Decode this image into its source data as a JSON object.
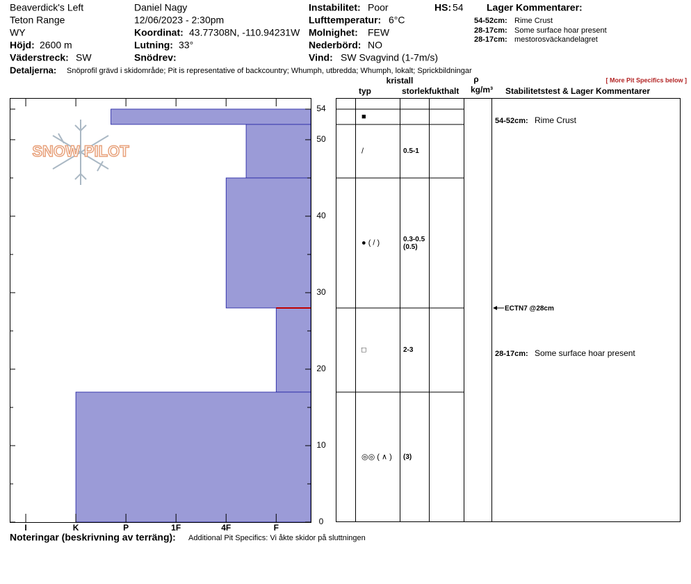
{
  "header": {
    "location": "Beaverdick's Left",
    "range": "Teton Range",
    "state": "WY",
    "elevation_label": "Höjd:",
    "elevation": "2600 m",
    "aspect_label": "Väderstreck:",
    "aspect": "SW",
    "observer": "Daniel Nagy",
    "datetime": "12/06/2023 - 2:30pm",
    "coordinates_label": "Koordinat:",
    "coordinates": "43.77308N, -110.94231W",
    "slope_label": "Lutning:",
    "slope": "33°",
    "wind_loading_label": "Snödrev:",
    "instability_label": "Instabilitet:",
    "instability": "Poor",
    "air_temp_label": "Lufttemperatur:",
    "air_temp": "6°C",
    "sky_label": "Molnighet:",
    "sky": "FEW",
    "precip_label": "Nederbörd:",
    "precip": "NO",
    "wind_label": "Vind:",
    "wind": "SW  Svagvind (1-7m/s)",
    "hs_label": "HS:",
    "hs": "54",
    "layer_comments_title": "Lager Kommentarer:",
    "layer_comments": [
      {
        "range": "54-52cm:",
        "text": "Rime Crust"
      },
      {
        "range": "28-17cm:",
        "text": "Some surface hoar present"
      },
      {
        "range": "28-17cm:",
        "text": "mestorosväckandelagret"
      }
    ],
    "details_label": "Detaljerna:",
    "details": "Snöprofil grävd i skidområde;  Pit is representative of backcountry;  Whumph, utbredda;  Whumph, lokalt;  Sprickbildningar"
  },
  "logo": "SNOW PILOT",
  "table": {
    "more_link": "[ More Pit Specifics below ]",
    "crystal_header": "kristall",
    "type_header": "typ",
    "size_header": "storlek",
    "moisture_header": "fukthalt",
    "density_symbol": "ρ",
    "density_unit": "kg/m³",
    "comments_header": "Stabilitetstest & Lager Kommentarer",
    "grain_types": [
      "■",
      "/",
      "● ( / )",
      "□",
      "◎◎ ( ∧ )"
    ],
    "grain_sizes": [
      null,
      "0.5-1",
      "0.3-0.5",
      "2-3",
      null
    ],
    "grain_sizes_secondary": [
      null,
      null,
      "(0.5)",
      null,
      "(3)"
    ],
    "comments": [
      {
        "range": "54-52cm:",
        "text": "Rime Crust"
      },
      {
        "range": "28-17cm:",
        "text": "Some surface hoar present"
      }
    ],
    "stability_test": "ECTN7 @28cm"
  },
  "chart_data": {
    "type": "snow-profile",
    "layers": {
      "top": [
        54,
        52,
        45,
        28,
        17
      ],
      "bottom": [
        52,
        45,
        28,
        17,
        0
      ],
      "hardness": [
        4.3,
        1.6,
        2,
        1,
        5
      ]
    },
    "color": "#9b9bd7",
    "test_depth": 28,
    "test_color": "#c00000",
    "ylim": [
      0,
      55.45
    ],
    "yticks": [
      0,
      10,
      20,
      30,
      40,
      50,
      54
    ],
    "yminorticks": [
      5,
      15,
      25,
      35,
      45
    ],
    "xlim": [
      6.32,
      0.31
    ],
    "xticks": [
      {
        "value": 6,
        "label": "I"
      },
      {
        "value": 5,
        "label": "K"
      },
      {
        "value": 4,
        "label": "P"
      },
      {
        "value": 3,
        "label": "1F"
      },
      {
        "value": 2,
        "label": "4F"
      },
      {
        "value": 1,
        "label": "F"
      }
    ]
  },
  "notes": {
    "label": "Noteringar (beskrivning av terräng):",
    "text": "Additional Pit Specifics: Vi åkte skidor på sluttningen"
  }
}
